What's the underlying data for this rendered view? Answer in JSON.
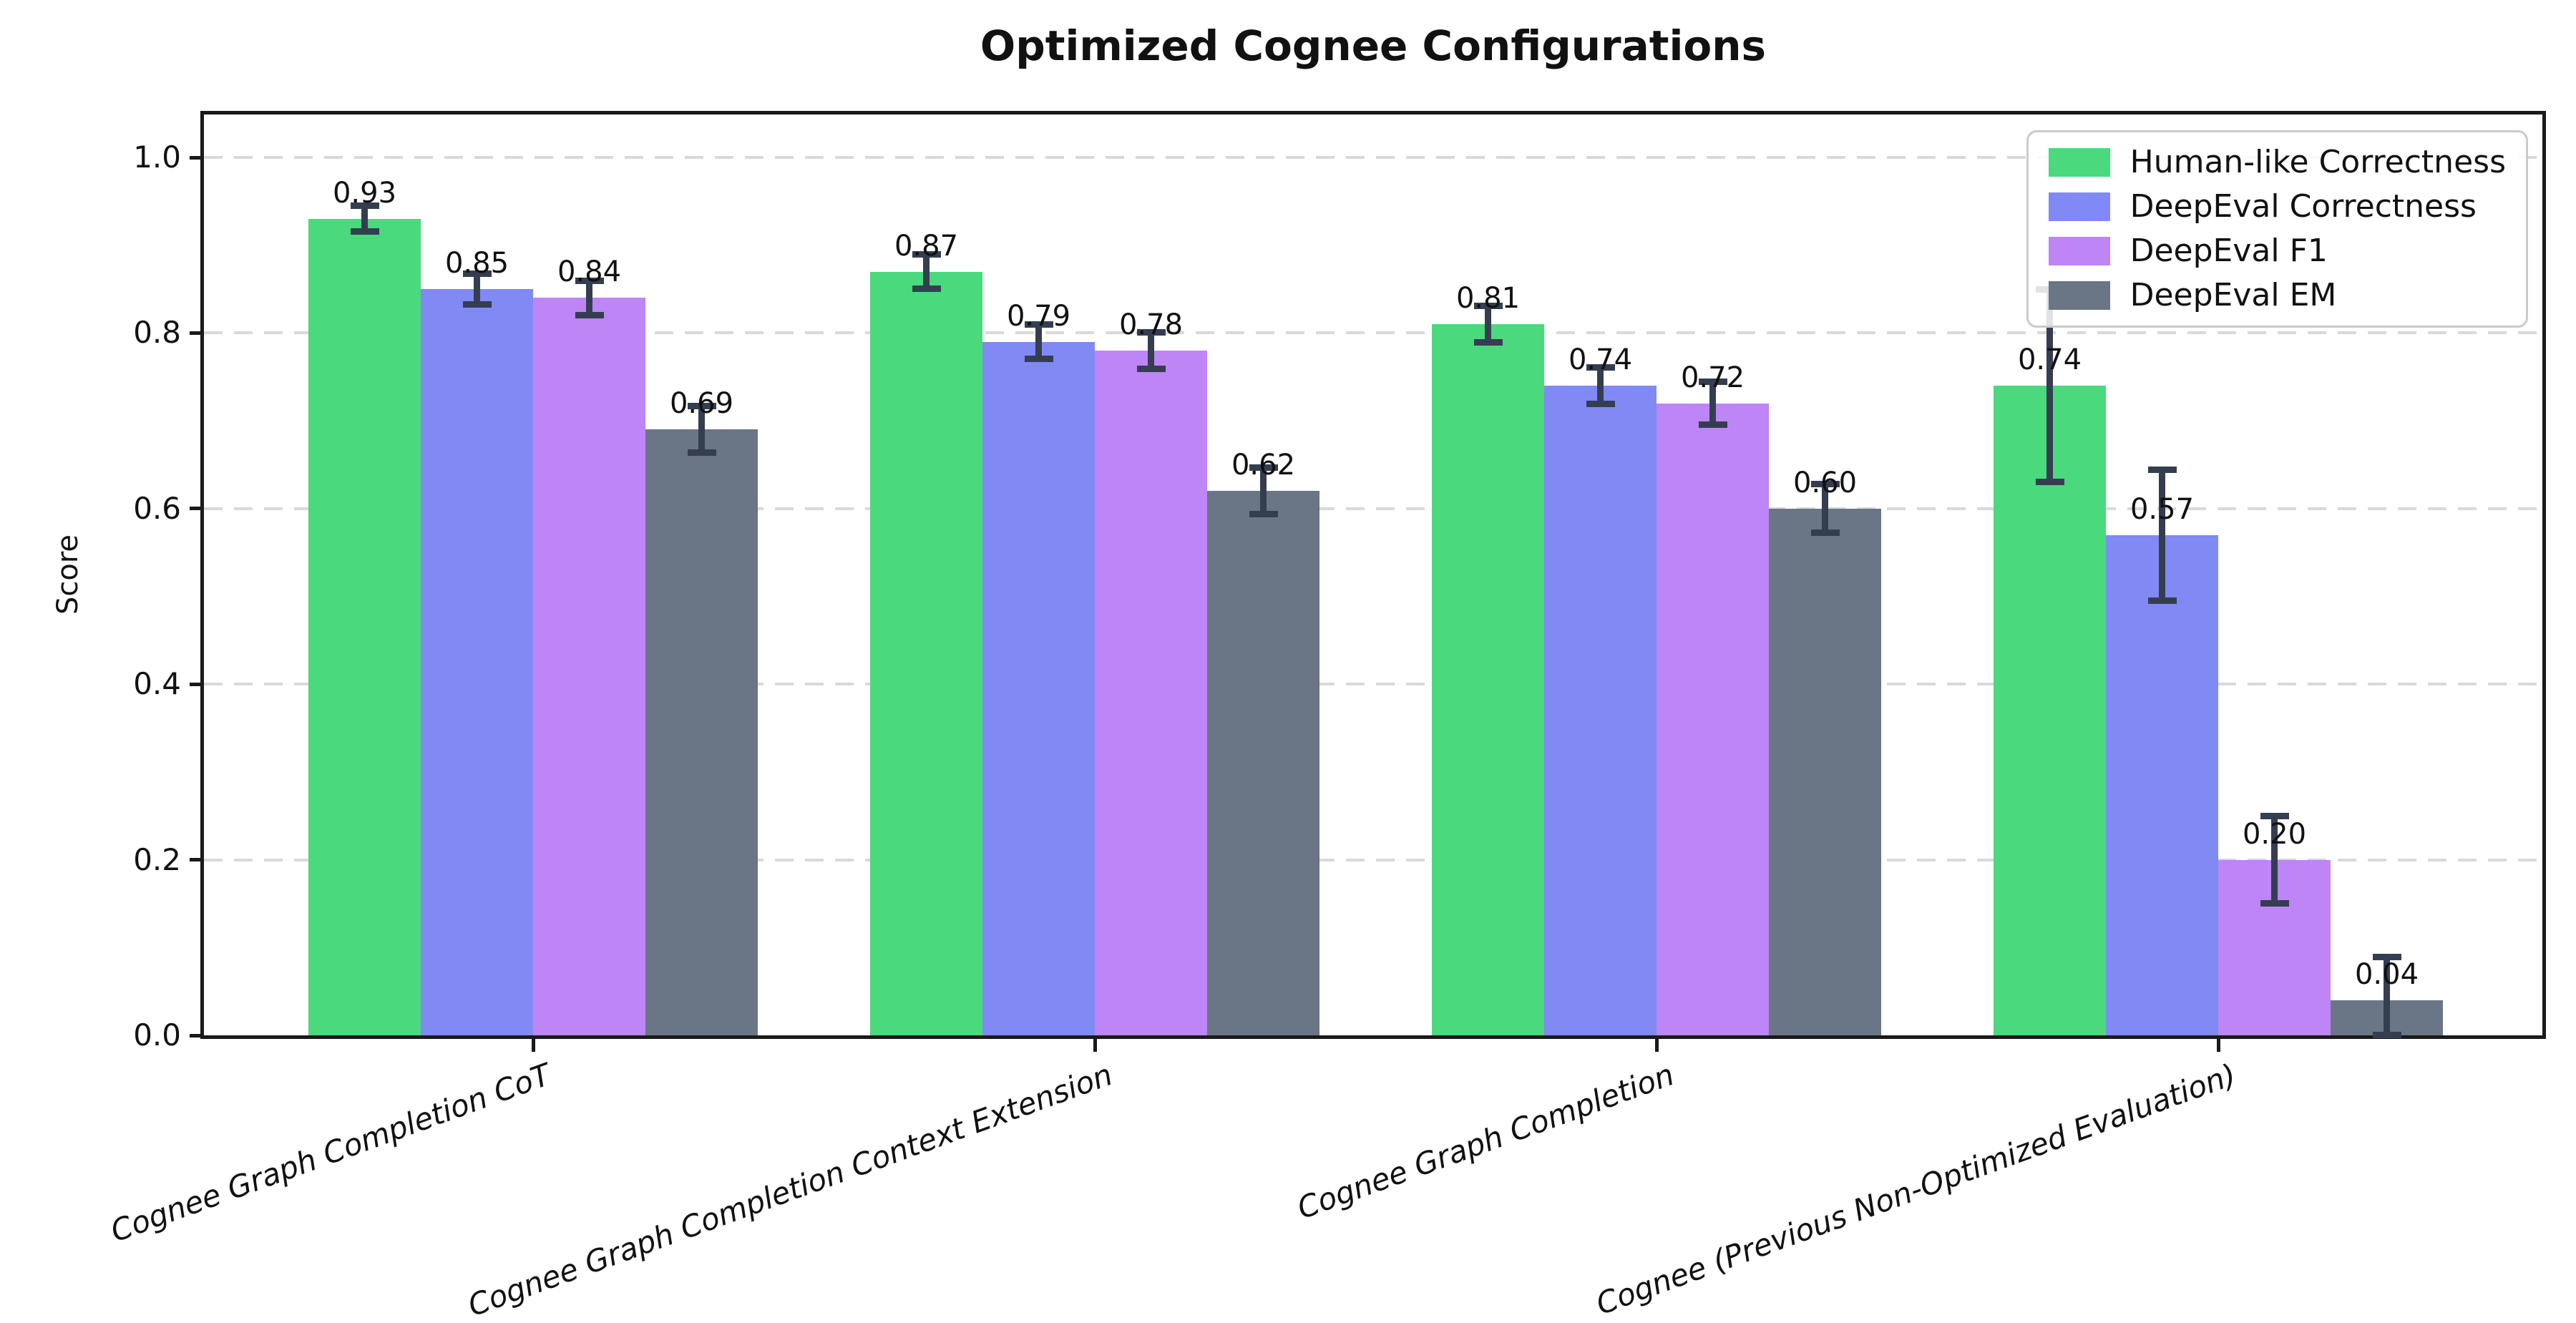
{
  "chart_data": {
    "type": "bar",
    "title": "Optimized Cognee Configurations",
    "ylabel": "Score",
    "xlabel": "",
    "ylim": [
      0,
      1.049
    ],
    "yticks": [
      0.0,
      0.2,
      0.4,
      0.6,
      0.8,
      1.0
    ],
    "ytick_labels": [
      "0.0",
      "0.2",
      "0.4",
      "0.6",
      "0.8",
      "1.0"
    ],
    "grid": "horizontal-dashed",
    "gridline_color": "#d9d9d9",
    "legend_position": "upper right",
    "error_bar_color": "#343e50",
    "categories": [
      "Cognee Graph Completion CoT",
      "Cognee Graph Completion Context Extension",
      "Cognee Graph Completion",
      "Cognee (Previous Non-Optimized Evaluation)"
    ],
    "series": [
      {
        "name": "Human-like Correctness",
        "color": "#4ad97d",
        "values": [
          0.93,
          0.87,
          0.81,
          0.74
        ],
        "value_labels": [
          "0.93",
          "0.87",
          "0.81",
          "0.74"
        ],
        "errors": [
          0.015,
          0.02,
          0.021,
          0.11
        ]
      },
      {
        "name": "DeepEval Correctness",
        "color": "#8189f4",
        "values": [
          0.85,
          0.79,
          0.74,
          0.57
        ],
        "value_labels": [
          "0.85",
          "0.79",
          "0.74",
          "0.57"
        ],
        "errors": [
          0.018,
          0.02,
          0.021,
          0.075
        ]
      },
      {
        "name": "DeepEval F1",
        "color": "#bd85f5",
        "values": [
          0.84,
          0.78,
          0.72,
          0.2
        ],
        "value_labels": [
          "0.84",
          "0.78",
          "0.72",
          "0.20"
        ],
        "errors": [
          0.02,
          0.021,
          0.025,
          0.05
        ]
      },
      {
        "name": "DeepEval EM",
        "color": "#6a7585",
        "values": [
          0.69,
          0.62,
          0.6,
          0.04
        ],
        "value_labels": [
          "0.69",
          "0.62",
          "0.60",
          "0.04"
        ],
        "errors": [
          0.027,
          0.027,
          0.028,
          0.05
        ]
      }
    ]
  }
}
